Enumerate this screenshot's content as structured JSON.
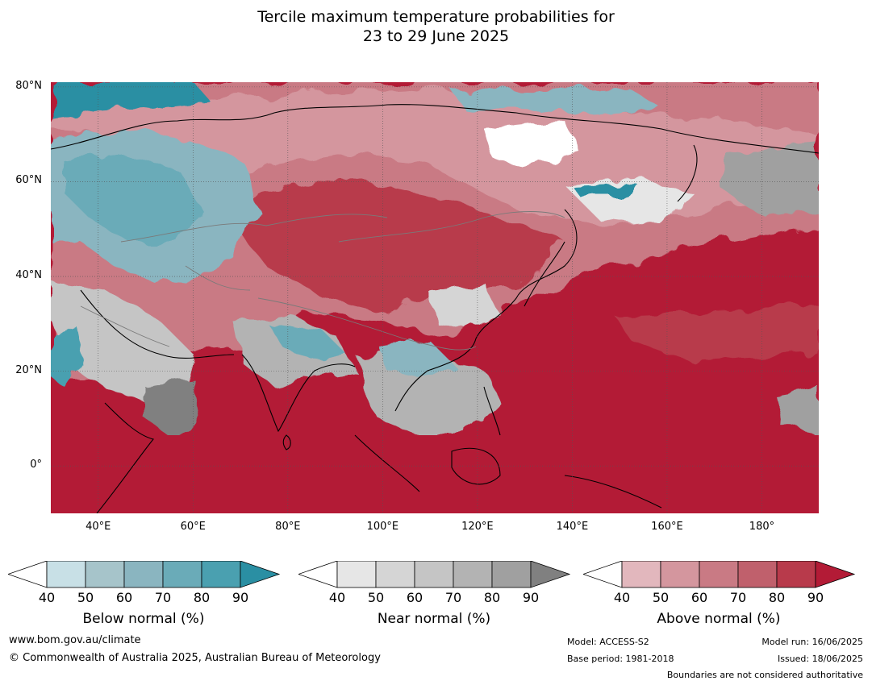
{
  "title": {
    "line1": "Tercile maximum temperature probabilities for",
    "line2": "23 to 29 June 2025"
  },
  "map": {
    "lat_labels": [
      "80°N",
      "60°N",
      "40°N",
      "20°N",
      "0°"
    ],
    "lon_labels": [
      "40°E",
      "60°E",
      "80°E",
      "100°E",
      "120°E",
      "140°E",
      "160°E",
      "180°"
    ],
    "lon_range": [
      30,
      192
    ],
    "lat_range": [
      -10,
      81
    ]
  },
  "colorbars": [
    {
      "name": "below-normal",
      "title": "Below normal (%)",
      "ticks": [
        "40",
        "50",
        "60",
        "70",
        "80",
        "90"
      ],
      "colors": [
        "#ffffff",
        "#c8e0e6",
        "#a6c4ca",
        "#8ab5c0",
        "#6aabb8",
        "#4aa0b0",
        "#2a8fa3"
      ]
    },
    {
      "name": "near-normal",
      "title": "Near normal (%)",
      "ticks": [
        "40",
        "50",
        "60",
        "70",
        "80",
        "90"
      ],
      "colors": [
        "#ffffff",
        "#e6e6e6",
        "#d5d5d5",
        "#c5c5c5",
        "#b3b3b3",
        "#a0a0a0",
        "#808080"
      ]
    },
    {
      "name": "above-normal",
      "title": "Above normal (%)",
      "ticks": [
        "40",
        "50",
        "60",
        "70",
        "80",
        "90"
      ],
      "colors": [
        "#ffffff",
        "#e2b7bd",
        "#d4969e",
        "#c97a84",
        "#c0606c",
        "#b83a4b",
        "#b31b36"
      ]
    }
  ],
  "footer": {
    "url": "www.bom.gov.au/climate",
    "copyright": "© Commonwealth of Australia 2025, Australian Bureau of Meteorology",
    "model": "Model: ACCESS-S2",
    "base_period": "Base period: 1981-2018",
    "model_run": "Model run: 16/06/2025",
    "issued": "Issued: 18/06/2025",
    "boundaries": "Boundaries are not considered authoritative"
  }
}
